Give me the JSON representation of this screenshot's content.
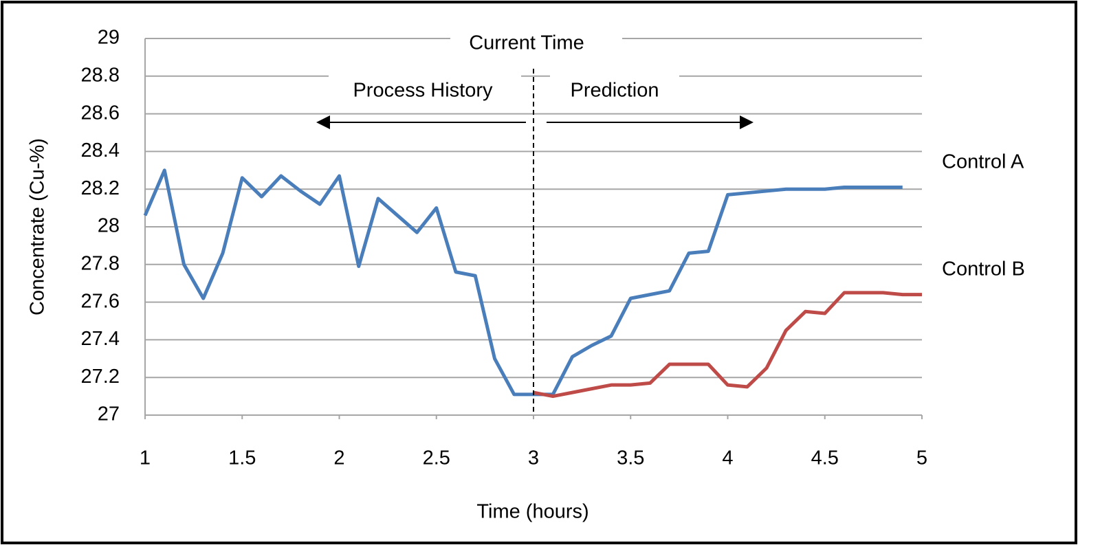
{
  "chart_data": {
    "type": "line",
    "xlabel": "Time (hours)",
    "ylabel": "Concentrate (Cu-%)",
    "annotations": {
      "current": "Current Time",
      "history": "Process History",
      "prediction": "Prediction",
      "label_a": "Control A",
      "label_b": "Control B"
    },
    "xlim": [
      1,
      5
    ],
    "xticks": [
      1,
      1.5,
      2,
      2.5,
      3,
      3.5,
      4,
      4.5,
      5
    ],
    "ylim": [
      27,
      29
    ],
    "yticks": [
      27,
      27.2,
      27.4,
      27.6,
      27.8,
      28,
      28.2,
      28.4,
      28.6,
      28.8,
      29
    ],
    "grid": true,
    "series": [
      {
        "color": "#4a7ebb",
        "x": [
          1,
          1.1,
          1.2,
          1.3,
          1.4,
          1.5,
          1.6,
          1.7,
          1.8,
          1.9,
          2,
          2.1,
          2.2,
          2.3,
          2.4,
          2.5,
          2.6,
          2.7,
          2.8,
          2.9,
          3,
          3.1,
          3.2,
          3.3,
          3.4,
          3.5,
          3.6,
          3.7,
          3.8,
          3.9,
          4,
          4.1,
          4.2,
          4.3,
          4.4,
          4.5,
          4.6,
          4.7,
          4.8,
          4.9
        ],
        "values": [
          28.06,
          28.3,
          27.8,
          27.62,
          27.86,
          28.26,
          28.16,
          28.27,
          28.19,
          28.12,
          28.27,
          27.79,
          28.15,
          28.06,
          27.97,
          28.1,
          27.76,
          27.74,
          27.3,
          27.11,
          27.11,
          27.11,
          27.31,
          27.37,
          27.42,
          27.62,
          27.64,
          27.66,
          27.86,
          27.87,
          28.17,
          28.18,
          28.19,
          28.2,
          28.2,
          28.2,
          28.21,
          28.21,
          28.21,
          28.21
        ]
      },
      {
        "color": "#be4b48",
        "x": [
          3,
          3.1,
          3.2,
          3.3,
          3.4,
          3.5,
          3.6,
          3.7,
          3.8,
          3.9,
          4,
          4.1,
          4.2,
          4.3,
          4.4,
          4.5,
          4.6,
          4.7,
          4.8,
          4.9,
          5
        ],
        "values": [
          27.12,
          27.1,
          27.12,
          27.14,
          27.16,
          27.16,
          27.17,
          27.27,
          27.27,
          27.27,
          27.16,
          27.15,
          27.25,
          27.45,
          27.55,
          27.54,
          27.65,
          27.65,
          27.65,
          27.64,
          27.64
        ]
      }
    ]
  }
}
